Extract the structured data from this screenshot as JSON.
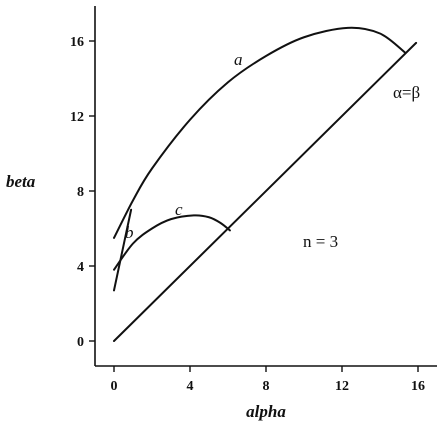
{
  "chart_data": {
    "type": "line",
    "title": "",
    "xlabel": "alpha",
    "ylabel": "beta",
    "xlim": [
      -0.8,
      16.6
    ],
    "ylim": [
      -1.3,
      17.8
    ],
    "x_ticks": [
      "0",
      "4",
      "8",
      "12",
      "16"
    ],
    "y_ticks": [
      "0",
      "4",
      "8",
      "12",
      "16"
    ],
    "grid": false,
    "series": [
      {
        "name": "a",
        "points": [
          [
            0,
            5.5
          ],
          [
            1,
            7.5
          ],
          [
            2,
            9.2
          ],
          [
            4,
            11.8
          ],
          [
            6,
            13.8
          ],
          [
            8,
            15.2
          ],
          [
            10,
            16.2
          ],
          [
            12.3,
            16.7
          ],
          [
            14,
            16.4
          ],
          [
            15.3,
            15.4
          ]
        ]
      },
      {
        "name": "b",
        "points": [
          [
            0,
            2.7
          ],
          [
            0.9,
            7.0
          ]
        ]
      },
      {
        "name": "c",
        "points": [
          [
            0,
            3.8
          ],
          [
            1,
            5.2
          ],
          [
            2,
            6.0
          ],
          [
            3,
            6.5
          ],
          [
            4.2,
            6.7
          ],
          [
            5,
            6.6
          ],
          [
            5.6,
            6.3
          ],
          [
            6.1,
            5.9
          ]
        ]
      },
      {
        "name": "α=β",
        "points": [
          [
            0,
            0
          ],
          [
            15.9,
            15.9
          ]
        ]
      }
    ],
    "annotations": {
      "label_a": "a",
      "label_b": "b",
      "label_c": "c",
      "label_diag": "α=β",
      "n_label": "n = 3"
    }
  }
}
